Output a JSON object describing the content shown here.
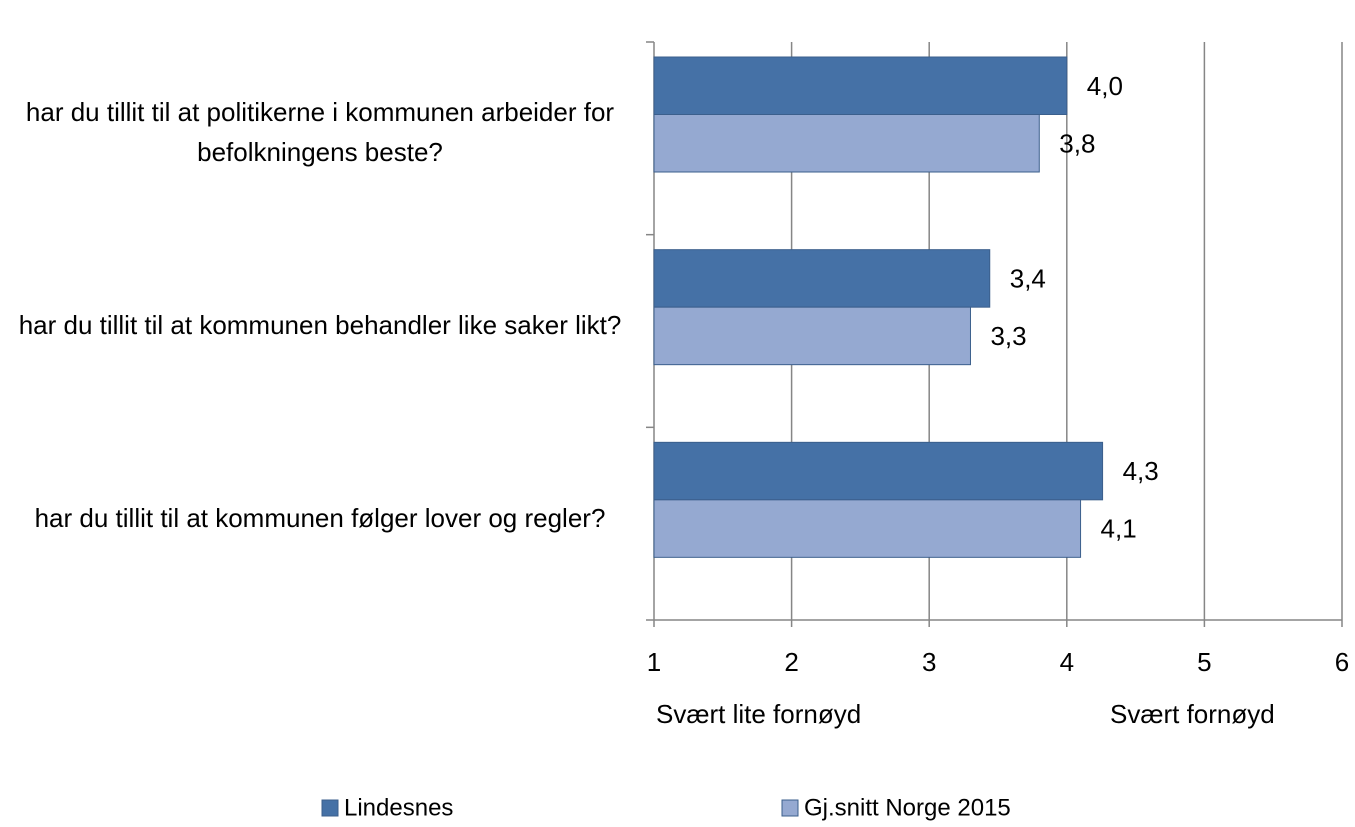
{
  "chart_data": {
    "type": "barh",
    "categories": [
      "har du tillit til at politikerne i kommunen arbeider for befolkningens beste?",
      "har du tillit til at kommunen behandler like saker likt?",
      "har du tillit til at kommunen følger lover og regler?"
    ],
    "series": [
      {
        "name": "Lindesnes",
        "color": "#4571a6",
        "values": [
          4.0,
          3.44,
          4.26
        ],
        "value_labels": [
          "4,0",
          "3,4",
          "4,3"
        ]
      },
      {
        "name": "Gj.snitt Norge 2015",
        "color": "#95a9d1",
        "values": [
          3.8,
          3.3,
          4.1
        ],
        "value_labels": [
          "3,8",
          "3,3",
          "4,1"
        ]
      }
    ],
    "xlim": [
      1,
      6
    ],
    "xticks": [
      1,
      2,
      3,
      4,
      5,
      6
    ],
    "grid": true,
    "annotations": [
      "Svært lite fornøyd",
      "Svært fornøyd"
    ],
    "legend": "bottom"
  }
}
